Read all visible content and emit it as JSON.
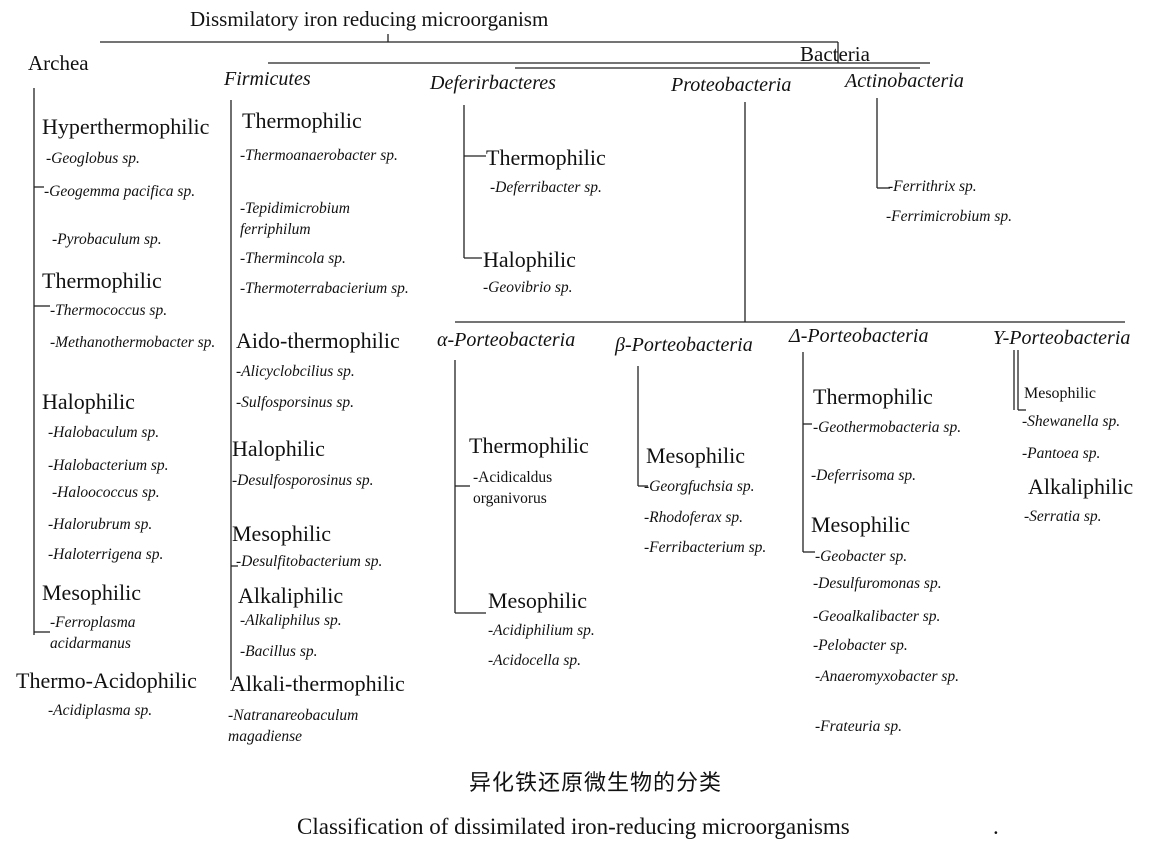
{
  "title": "Dissmilatory iron reducing microorganism",
  "bacteria_label": "Bacteria",
  "archea": {
    "label": "Archea",
    "groups": [
      {
        "name": "Hyperthermophilic",
        "species": [
          "-Geoglobus sp.",
          "-Geogemma pacifica sp.",
          "-Pyrobaculum sp."
        ]
      },
      {
        "name": "Thermophilic",
        "species": [
          "-Thermococcus sp.",
          "-Methanothermobacter sp."
        ]
      },
      {
        "name": "Halophilic",
        "species": [
          "-Halobaculum sp.",
          "-Halobacterium sp.",
          "-Haloococcus sp.",
          "-Halorubrum sp.",
          "-Haloterrigena sp."
        ]
      },
      {
        "name": "Mesophilic",
        "species": [
          "-Ferroplasma acidarmanus"
        ]
      },
      {
        "name": "Thermo-Acidophilic",
        "species": [
          "-Acidiplasma sp."
        ]
      }
    ]
  },
  "firmicutes": {
    "label": "Firmicutes",
    "groups": [
      {
        "name": "Thermophilic",
        "species": [
          "-Thermoanaerobacter sp.",
          "-Tepidimicrobium ferriphilum",
          "-Thermincola sp.",
          "-Thermoterrabacierium sp."
        ]
      },
      {
        "name": "Aido-thermophilic",
        "species": [
          "-Alicyclobcilius sp.",
          "-Sulfosporsinus sp."
        ]
      },
      {
        "name": "Halophilic",
        "species": [
          "-Desulfosporosinus sp."
        ]
      },
      {
        "name": "Mesophilic",
        "species": [
          "-Desulfitobacterium sp."
        ]
      },
      {
        "name": "Alkaliphilic",
        "species": [
          "-Alkaliphilus sp.",
          "-Bacillus sp."
        ]
      },
      {
        "name": "Alkali-thermophilic",
        "species": [
          "-Natranareobaculum magadiense"
        ]
      }
    ]
  },
  "deferribacteres": {
    "label": "Deferirbacteres",
    "groups": [
      {
        "name": "Thermophilic",
        "species": [
          "-Deferribacter sp."
        ]
      },
      {
        "name": "Halophilic",
        "species": [
          "-Geovibrio sp."
        ]
      }
    ]
  },
  "proteobacteria": {
    "label": "Proteobacteria"
  },
  "actinobacteria": {
    "label": "Actinobacteria",
    "species": [
      "-Ferrithrix sp.",
      "-Ferrimicrobium sp."
    ]
  },
  "alpha": {
    "label": "α-Porteobacteria",
    "groups": [
      {
        "name": "Thermophilic",
        "species": [
          "-Acidicaldus organivorus"
        ]
      },
      {
        "name": "Mesophilic",
        "species": [
          "-Acidiphilium sp.",
          "-Acidocella sp."
        ]
      }
    ]
  },
  "beta": {
    "label": "β-Porteobacteria",
    "groups": [
      {
        "name": "Mesophilic",
        "species": [
          "-Georgfuchsia sp.",
          "-Rhodoferax sp.",
          "-Ferribacterium sp."
        ]
      }
    ]
  },
  "delta": {
    "label": "Δ-Porteobacteria",
    "groups": [
      {
        "name": "Thermophilic",
        "species": [
          "-Geothermobacteria sp.",
          "-Deferrisoma sp."
        ]
      },
      {
        "name": "Mesophilic",
        "species": [
          "-Geobacter sp.",
          "-Desulfuromonas sp.",
          "-Geoalkalibacter sp.",
          "-Pelobacter sp.",
          "-Anaeromyxobacter sp.",
          "-Frateuria sp."
        ]
      }
    ]
  },
  "gamma": {
    "label": "Y-Porteobacteria",
    "groups": [
      {
        "name": "Mesophilic",
        "species": [
          "-Shewanella sp.",
          "-Pantoea sp."
        ]
      },
      {
        "name": "Alkaliphilic",
        "species": [
          "-Serratia sp."
        ]
      }
    ]
  },
  "caption_cn": "异化铁还原微生物的分类",
  "caption_en": "Classification of dissimilated iron-reducing microorganisms",
  "caption_dot": "."
}
